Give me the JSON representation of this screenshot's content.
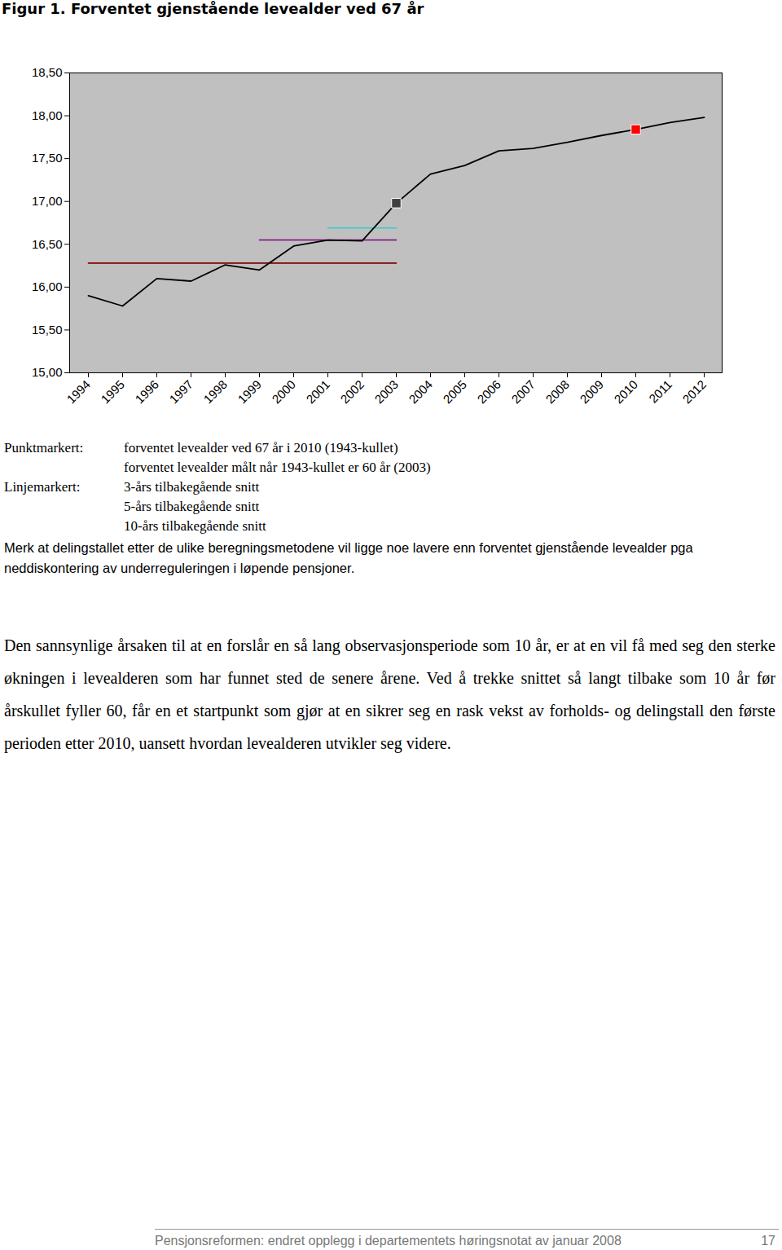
{
  "chart_data": {
    "type": "line",
    "title": "Figur 1. Forventet gjenstående levealder ved 67 år",
    "categories": [
      "1994",
      "1995",
      "1996",
      "1997",
      "1998",
      "1999",
      "2000",
      "2001",
      "2002",
      "2003",
      "2004",
      "2005",
      "2006",
      "2007",
      "2008",
      "2009",
      "2010",
      "2011",
      "2012"
    ],
    "ylim": [
      15,
      18.5
    ],
    "yticks": [
      {
        "value": 15,
        "label": "15,00"
      },
      {
        "value": 15.5,
        "label": "15,50"
      },
      {
        "value": 16,
        "label": "16,00"
      },
      {
        "value": 16.5,
        "label": "16,50"
      },
      {
        "value": 17,
        "label": "17,00"
      },
      {
        "value": 17.5,
        "label": "17,50"
      },
      {
        "value": 18,
        "label": "18,00"
      },
      {
        "value": 18.5,
        "label": "18,50"
      }
    ],
    "grid": false,
    "series": [
      {
        "type": "line",
        "color": "#000000",
        "values": [
          15.9,
          15.78,
          16.1,
          16.07,
          16.26,
          16.2,
          16.48,
          16.55,
          16.54,
          16.98,
          17.32,
          17.42,
          17.59,
          17.62,
          17.69,
          17.77,
          17.84,
          17.92,
          17.98
        ]
      },
      {
        "name": "forventet levealder ved 67 år i 2010 (1943-kullet)",
        "group": "Punktmarkert:",
        "type": "scatter",
        "marker": "square",
        "color": "#ff0000",
        "values": [
          null,
          null,
          null,
          null,
          null,
          null,
          null,
          null,
          null,
          null,
          null,
          null,
          null,
          null,
          null,
          null,
          17.84,
          null,
          null
        ]
      },
      {
        "name": "forventet levealder målt når 1943-kullet er 60 år (2003)",
        "group": "Punktmarkert:",
        "type": "scatter",
        "marker": "square",
        "color": "#404040",
        "values": [
          null,
          null,
          null,
          null,
          null,
          null,
          null,
          null,
          null,
          16.98,
          null,
          null,
          null,
          null,
          null,
          null,
          null,
          null,
          null
        ]
      },
      {
        "name": "3-års tilbakegående snitt",
        "group": "Linjemarkert:",
        "type": "line",
        "color": "#33cccc",
        "values": [
          null,
          null,
          null,
          null,
          null,
          null,
          null,
          16.69,
          16.69,
          16.69,
          null,
          null,
          null,
          null,
          null,
          null,
          null,
          null,
          null
        ]
      },
      {
        "name": "5-års tilbakegående snitt",
        "group": "Linjemarkert:",
        "type": "line",
        "color": "#800080",
        "values": [
          null,
          null,
          null,
          null,
          null,
          16.55,
          16.55,
          16.55,
          16.55,
          16.55,
          null,
          null,
          null,
          null,
          null,
          null,
          null,
          null,
          null
        ]
      },
      {
        "name": "10-års tilbakegående snitt",
        "group": "Linjemarkert:",
        "type": "line",
        "color": "#800000",
        "values": [
          16.28,
          16.28,
          16.28,
          16.28,
          16.28,
          16.28,
          16.28,
          16.28,
          16.28,
          16.28,
          null,
          null,
          null,
          null,
          null,
          null,
          null,
          null,
          null
        ]
      }
    ],
    "note": "Merk at delingstallet etter de ulike beregningsmetodene vil ligge noe lavere enn forventet gjenstående levealder pga neddiskontering av underreguleringen i løpende pensjoner."
  },
  "text": {
    "paragraph": "Den sannsynlige årsaken til at en forslår en så lang observasjonsperiode som 10 år, er at en vil få med seg den sterke økningen i levealderen som har funnet sted de senere årene. Ved å trekke snittet så langt tilbake som 10 år før årskullet fyller 60, får en et startpunkt som gjør at en sikrer seg en rask vekst av forholds- og delingstall den første perioden etter 2010, uansett hvordan levealderen utvikler seg videre.",
    "footer": "Pensjonsreformen: endret opplegg i departementets høringsnotat av januar 2008",
    "page": "17"
  }
}
